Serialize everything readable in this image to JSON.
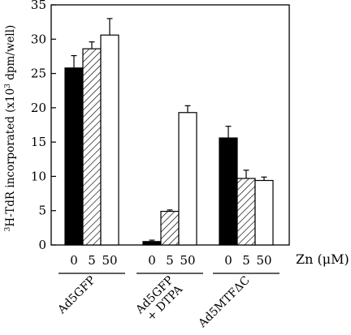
{
  "chart_data": {
    "type": "bar",
    "ylabel_parts": {
      "pre_sup": "3",
      "main": "H-TdR incorporated (x10",
      "mid_sup": "3",
      "post": " dpm/well)"
    },
    "ylim": [
      0,
      35
    ],
    "yticks": [
      0,
      5,
      10,
      15,
      20,
      25,
      30,
      35
    ],
    "x_unit_label": "Zn (μM)",
    "legend": "none",
    "grid": false,
    "fills": [
      "black",
      "hatched",
      "white"
    ],
    "groups": [
      {
        "name_lines": [
          "Ad5GFP"
        ],
        "doses": [
          "0",
          "5",
          "50"
        ],
        "values": [
          25.8,
          28.6,
          30.6
        ],
        "errors": [
          1.8,
          1.0,
          2.4
        ]
      },
      {
        "name_lines": [
          "Ad5GFP",
          "+ DTPA"
        ],
        "doses": [
          "0",
          "5",
          "50"
        ],
        "values": [
          0.5,
          4.9,
          19.3
        ],
        "errors": [
          0.2,
          0.2,
          1.0
        ]
      },
      {
        "name_lines": [
          "Ad5MTFΔC"
        ],
        "doses": [
          "0",
          "5",
          "50"
        ],
        "values": [
          15.6,
          9.7,
          9.4
        ],
        "errors": [
          1.7,
          1.2,
          0.5
        ]
      }
    ]
  }
}
